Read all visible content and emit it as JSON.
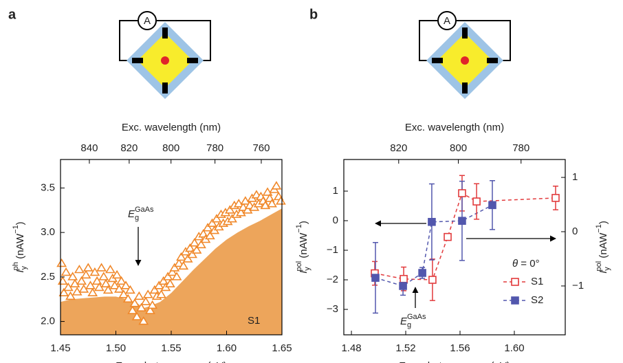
{
  "chart_data": [
    {
      "type": "scatter",
      "panel_label": "a",
      "meter_label": "A",
      "xlabel": "Exc. photon energy (eV)",
      "x2label": "Exc. wavelength (nm)",
      "ylabel": [
        {
          "text": "I",
          "style": "italic"
        },
        {
          "text": "y",
          "style": "sub"
        },
        {
          "text": "ph",
          "style": "sup"
        },
        {
          "text": " (nAW"
        },
        {
          "text": "−1",
          "style": "sup"
        },
        {
          "text": ")"
        }
      ],
      "xlim": [
        1.45,
        1.65
      ],
      "xticks": [
        1.45,
        {
          "value": 1.5,
          "label": "1.50"
        },
        1.55,
        {
          "value": 1.6,
          "label": "1.60"
        },
        1.65
      ],
      "x2lim": [
        855.1,
        751.4
      ],
      "x2ticks": [
        840,
        820,
        800,
        780,
        760
      ],
      "ylim": [
        1.85,
        3.82
      ],
      "yticks": [
        {
          "value": 2,
          "label": "2.0"
        },
        2.5,
        {
          "value": 3,
          "label": "3.0"
        },
        3.5
      ],
      "series": [
        {
          "kind": "area",
          "color": "#eda55b",
          "x": [
            1.45,
            1.46,
            1.47,
            1.48,
            1.49,
            1.5,
            1.51,
            1.52,
            1.525,
            1.53,
            1.54,
            1.55,
            1.56,
            1.57,
            1.58,
            1.59,
            1.6,
            1.61,
            1.62,
            1.63,
            1.64,
            1.65
          ],
          "values": [
            2.22,
            2.25,
            2.26,
            2.27,
            2.28,
            2.28,
            2.25,
            2.2,
            2.15,
            2.17,
            2.22,
            2.32,
            2.45,
            2.58,
            2.7,
            2.82,
            2.92,
            3.0,
            3.07,
            3.13,
            3.2,
            3.27
          ]
        },
        {
          "kind": "markers",
          "marker": "triangle-open",
          "color": "#f0882a",
          "x": [
            1.451,
            1.452,
            1.453,
            1.455,
            1.457,
            1.459,
            1.461,
            1.463,
            1.465,
            1.467,
            1.469,
            1.471,
            1.473,
            1.475,
            1.477,
            1.479,
            1.481,
            1.483,
            1.485,
            1.487,
            1.489,
            1.491,
            1.493,
            1.495,
            1.497,
            1.499,
            1.501,
            1.503,
            1.505,
            1.507,
            1.509,
            1.511,
            1.513,
            1.515,
            1.517,
            1.519,
            1.521,
            1.523,
            1.525,
            1.527,
            1.529,
            1.531,
            1.533,
            1.535,
            1.537,
            1.539,
            1.541,
            1.543,
            1.545,
            1.547,
            1.549,
            1.551,
            1.553,
            1.555,
            1.557,
            1.559,
            1.561,
            1.563,
            1.565,
            1.567,
            1.569,
            1.571,
            1.573,
            1.575,
            1.577,
            1.579,
            1.581,
            1.583,
            1.585,
            1.587,
            1.589,
            1.591,
            1.593,
            1.595,
            1.597,
            1.599,
            1.601,
            1.603,
            1.605,
            1.607,
            1.609,
            1.611,
            1.613,
            1.615,
            1.617,
            1.619,
            1.621,
            1.623,
            1.625,
            1.627,
            1.629,
            1.631,
            1.633,
            1.635,
            1.637,
            1.639,
            1.641,
            1.643,
            1.645,
            1.647,
            1.649
          ],
          "values": [
            2.65,
            2.45,
            2.32,
            2.55,
            2.38,
            2.28,
            2.5,
            2.42,
            2.33,
            2.58,
            2.45,
            2.36,
            2.52,
            2.6,
            2.4,
            2.32,
            2.55,
            2.45,
            2.38,
            2.6,
            2.5,
            2.42,
            2.35,
            2.58,
            2.48,
            2.4,
            2.52,
            2.36,
            2.45,
            2.3,
            2.4,
            2.25,
            2.35,
            2.12,
            2.2,
            2.05,
            2.28,
            2.15,
            2.0,
            2.22,
            2.3,
            2.12,
            2.18,
            2.35,
            2.28,
            2.4,
            2.3,
            2.45,
            2.38,
            2.5,
            2.42,
            2.55,
            2.6,
            2.5,
            2.65,
            2.72,
            2.62,
            2.78,
            2.7,
            2.82,
            2.75,
            2.88,
            2.8,
            2.95,
            2.86,
            2.98,
            2.92,
            3.05,
            2.96,
            3.1,
            3.02,
            3.15,
            3.06,
            3.2,
            3.1,
            3.22,
            3.12,
            3.25,
            3.15,
            3.3,
            3.2,
            3.32,
            3.22,
            3.28,
            3.35,
            3.25,
            3.3,
            3.38,
            3.28,
            3.42,
            3.32,
            3.4,
            3.35,
            3.3,
            3.45,
            3.38,
            3.32,
            3.48,
            3.52,
            3.4,
            3.35
          ]
        }
      ],
      "annotations": [
        {
          "parts": [
            {
              "text": "E",
              "style": "italic"
            },
            {
              "text": "g",
              "style": "sub"
            },
            {
              "text": "GaAs",
              "style": "sup"
            }
          ]
        },
        {
          "parts": [
            {
              "text": "S1"
            }
          ]
        }
      ]
    },
    {
      "type": "line",
      "panel_label": "b",
      "meter_label": "A",
      "xlabel": "Exc. photon energy (eV)",
      "x2label": "Exc. wavelength (nm)",
      "ylabel": [
        {
          "text": "I",
          "style": "italic"
        },
        {
          "text": "y",
          "style": "sub"
        },
        {
          "text": "pol",
          "style": "sup"
        },
        {
          "text": " (nAW"
        },
        {
          "text": "−1",
          "style": "sup"
        },
        {
          "text": ")"
        }
      ],
      "y2label": [
        {
          "text": "I",
          "style": "italic"
        },
        {
          "text": "y",
          "style": "sub"
        },
        {
          "text": "pol",
          "style": "sup"
        },
        {
          "text": " (nAW"
        },
        {
          "text": "−1",
          "style": "sup"
        },
        {
          "text": ")"
        }
      ],
      "xlim": [
        1.4744,
        1.6375
      ],
      "xticks": [
        1.48,
        1.52,
        1.56,
        {
          "value": 1.6,
          "label": "1.60"
        }
      ],
      "x2lim": [
        839.3,
        766.5
      ],
      "x2ticks": [
        820,
        800,
        780
      ],
      "ylim": [
        -3.86,
        2.07
      ],
      "yticks": [
        {
          "value": -3,
          "label": "−3"
        },
        {
          "value": -2,
          "label": "−2"
        },
        {
          "value": -1,
          "label": "−1"
        },
        0,
        1
      ],
      "y2lim": [
        -1.9,
        1.33
      ],
      "y2ticks": [
        {
          "value": -1,
          "label": "−1"
        },
        0,
        1
      ],
      "series": [
        {
          "kind": "markers",
          "name": "S1",
          "marker": "square-open",
          "color": "#e23a3c",
          "x": [
            1.4972,
            1.5185,
            1.5397,
            1.5509,
            1.5615,
            1.5722,
            1.6304
          ],
          "values": [
            -1.78,
            -1.97,
            -2.0,
            -0.55,
            0.93,
            0.65,
            0.77
          ],
          "errors": [
            0.4,
            0.4,
            0.7,
            0.1,
            0.6,
            0.6,
            0.4
          ]
        },
        {
          "kind": "markers",
          "name": "S2",
          "marker": "square",
          "color": "#5257ad",
          "axis": "y2",
          "x": [
            1.4977,
            1.518,
            1.5322,
            1.5392,
            1.5615,
            1.5838
          ],
          "values": [
            -0.85,
            -1.0,
            -0.76,
            0.18,
            0.2,
            0.49
          ],
          "errors": [
            0.65,
            0.17,
            0.1,
            0.7,
            0.73,
            0.45
          ]
        }
      ],
      "annotations": [
        {
          "parts": [
            {
              "text": "E",
              "style": "italic"
            },
            {
              "text": "g",
              "style": "sub"
            },
            {
              "text": "GaAs",
              "style": "sup"
            }
          ]
        },
        {
          "parts": [
            {
              "text": "θ",
              "style": "italic"
            },
            {
              "text": " = 0°"
            }
          ]
        }
      ]
    }
  ]
}
